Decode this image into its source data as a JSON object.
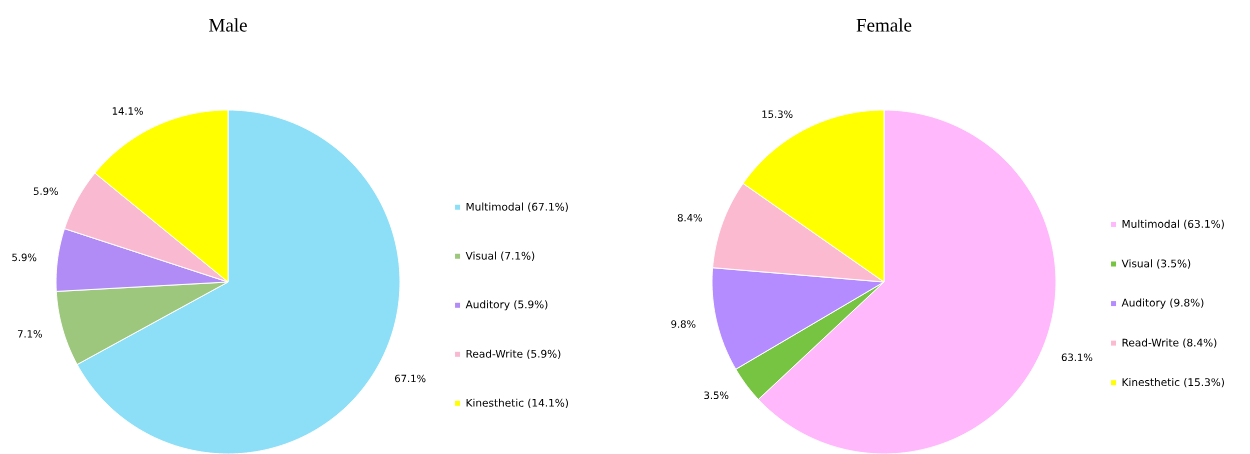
{
  "chart_data": [
    {
      "type": "pie",
      "title": "Male",
      "legend": "right",
      "categories": [
        "Multimodal (67.1%)",
        "Visual (7.1%)",
        "Auditory (5.9%)",
        "Read-Write (5.9%)",
        "Kinesthetic (14.1%)"
      ],
      "values": [
        67.1,
        7.1,
        5.9,
        5.9,
        14.1
      ],
      "colors": [
        "#8ddff8",
        "#9dc77c",
        "#b18cf7",
        "#f9b9d0",
        "#ffff00"
      ],
      "value_labels": [
        "67.1%",
        "7.1%",
        "5.9%",
        "5.9%",
        "14.1%"
      ]
    },
    {
      "type": "pie",
      "title": "Female",
      "legend": "right",
      "categories": [
        "Multimodal (63.1%)",
        "Visual (3.5%)",
        "Auditory (9.8%)",
        "Read-Write (8.4%)",
        "Kinesthetic (15.3%)"
      ],
      "values": [
        63.1,
        3.5,
        9.8,
        8.4,
        15.3
      ],
      "colors": [
        "#ffb8fb",
        "#76c442",
        "#b48cff",
        "#fbbad0",
        "#ffff00"
      ],
      "value_labels": [
        "63.1%",
        "3.5%",
        "9.8%",
        "8.4%",
        "15.3%"
      ]
    }
  ]
}
